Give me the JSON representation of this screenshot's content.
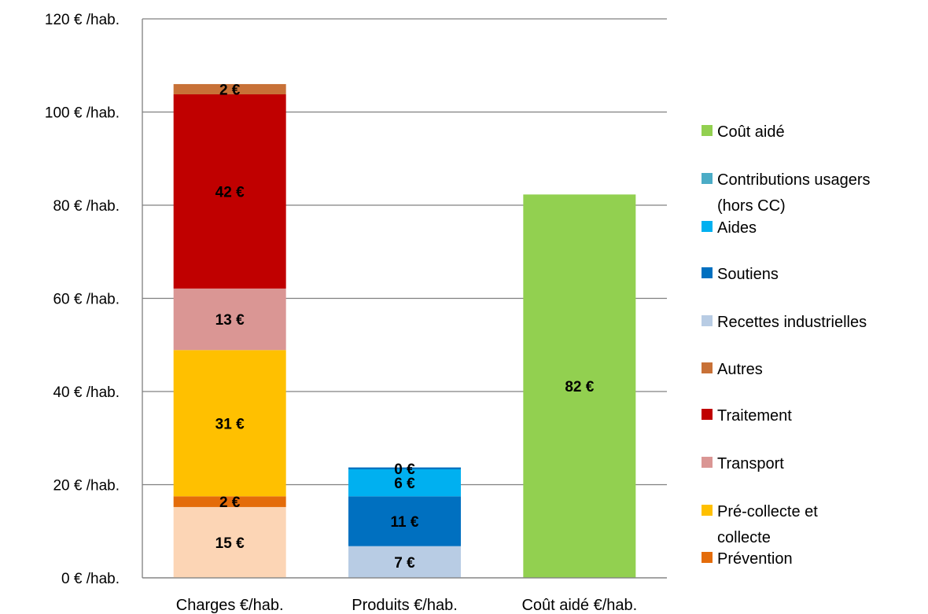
{
  "chart_data": {
    "type": "bar",
    "stacked": true,
    "ylim": [
      0,
      120
    ],
    "yticks": [
      0,
      20,
      40,
      60,
      80,
      100,
      120
    ],
    "ytick_suffix": " € /hab.",
    "grid": true,
    "legend_position": "right",
    "categories": [
      "Charges €/hab.",
      "Produits €/hab.",
      "Coût aidé €/hab."
    ],
    "series": [
      {
        "name": "Coût aidé",
        "color": "#92D050",
        "values": [
          0,
          0,
          82.3
        ],
        "labels": [
          "",
          "",
          "82 €"
        ]
      },
      {
        "name": "Contributions usagers (hors CC)",
        "color": "#4BACC6",
        "values": [
          0,
          0,
          0
        ],
        "labels": [
          "",
          "",
          ""
        ]
      },
      {
        "name": "Aides",
        "color": "#00B0F0",
        "values": [
          0,
          5.8,
          0
        ],
        "labels": [
          "",
          "6 €",
          ""
        ]
      },
      {
        "name": "Soutiens",
        "color": "#0070C0",
        "values": [
          0,
          10.7,
          0
        ],
        "labels": [
          "",
          "11 €",
          ""
        ]
      },
      {
        "name": "Recettes industrielles",
        "color": "#B8CCE4",
        "values": [
          0,
          6.8,
          0
        ],
        "labels": [
          "",
          "7 €",
          ""
        ]
      },
      {
        "name": "Autres",
        "color": "#C87137",
        "values": [
          2.2,
          0,
          0
        ],
        "labels": [
          "2 €",
          "",
          ""
        ]
      },
      {
        "name": "Traitement",
        "color": "#C00000",
        "values": [
          41.7,
          0,
          0
        ],
        "labels": [
          "42 €",
          "",
          ""
        ]
      },
      {
        "name": "Transport",
        "color": "#DA9694",
        "values": [
          13.2,
          0,
          0
        ],
        "labels": [
          "13 €",
          "",
          ""
        ]
      },
      {
        "name": "Pré-collecte et collecte",
        "color": "#FFC000",
        "values": [
          31.4,
          0,
          0
        ],
        "labels": [
          "31 €",
          "",
          ""
        ]
      },
      {
        "name": "Prévention",
        "color": "#E46C0A",
        "values": [
          2.3,
          0,
          0
        ],
        "labels": [
          "2 €",
          "",
          ""
        ]
      }
    ],
    "extra_segments": [
      {
        "category": 0,
        "color": "#FCD5B5",
        "value": 15.2,
        "label": "15 €",
        "position": "bottom"
      },
      {
        "category": 1,
        "color": "#0070C0",
        "value": 0.4,
        "label": "0 €",
        "position": "top",
        "note": "Contributions usagers drawn atop Produits"
      }
    ],
    "stack_order": [
      [
        "extra0",
        "Prévention",
        "Pré-collecte et collecte",
        "Transport",
        "Traitement",
        "Autres"
      ],
      [
        "Recettes industrielles",
        "Soutiens",
        "Aides",
        "extra1"
      ],
      [
        "Coût aidé"
      ]
    ],
    "legend_lines": {
      "Contributions usagers (hors CC)": [
        "Contributions usagers",
        "(hors CC)"
      ],
      "Pré-collecte et collecte": [
        "Pré-collecte et",
        "collecte"
      ]
    }
  }
}
